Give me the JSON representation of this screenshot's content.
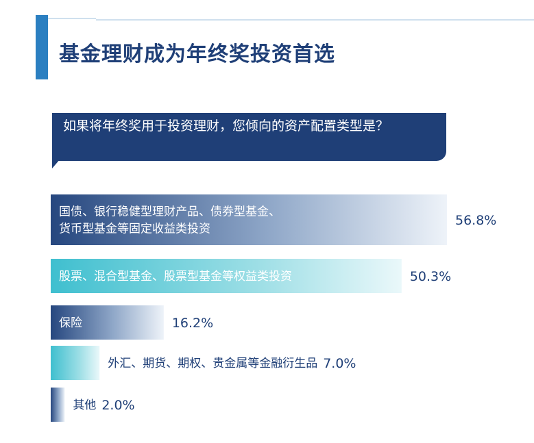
{
  "header": {
    "title": "基金理财成为年终奖投资首选"
  },
  "question": {
    "text": "如果将年终奖用于投资理财，您倾向的资产配置类型是？"
  },
  "colors": {
    "dark_blue": "#26477f",
    "teal": "#3fbfcf",
    "label_dark": "#1f3f77"
  },
  "chart_data": {
    "type": "bar",
    "orientation": "horizontal",
    "categories": [
      "国债、银行稳健型理财产品、债券型基金、货币型基金等固定收益类投资",
      "股票、混合型基金、股票型基金等权益类投资",
      "保险",
      "外汇、期货、期权、贵金属等金融衍生品",
      "其他"
    ],
    "category_lines": [
      [
        "国债、银行稳健型理财产品、债券型基金、",
        "货币型基金等固定收益类投资"
      ],
      [
        "股票、混合型基金、股票型基金等权益类投资"
      ],
      [
        "保险"
      ],
      [
        "外汇、期货、期权、贵金属等金融衍生品"
      ],
      [
        "其他"
      ]
    ],
    "values": [
      56.8,
      50.3,
      16.2,
      7.0,
      2.0
    ],
    "value_labels": [
      "56.8%",
      "50.3%",
      "16.2%",
      "7.0%",
      "2.0%"
    ],
    "styles": [
      "dark",
      "teal",
      "dark",
      "teal",
      "dark"
    ],
    "xlim": [
      0,
      56.8
    ]
  }
}
